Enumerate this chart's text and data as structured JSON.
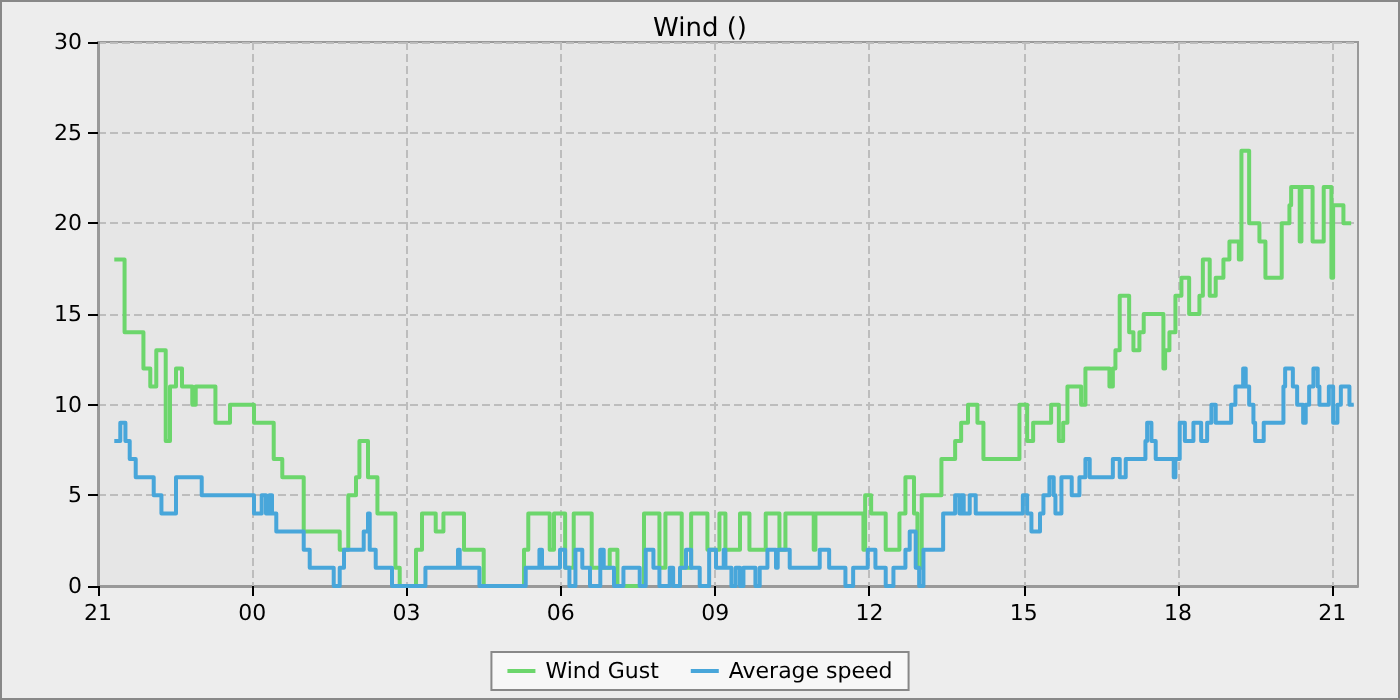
{
  "chart_data": {
    "type": "step",
    "title": "Wind ()",
    "xlim": [
      "--01-01T21:00",
      "--01-02T21:30"
    ],
    "ylim": [
      0,
      30
    ],
    "yticks": [
      0,
      5,
      10,
      15,
      20,
      25,
      30
    ],
    "xticks": [
      {
        "value": "--01-01T21:00",
        "label": "21"
      },
      {
        "value": "--01-02T00:00",
        "label": "00"
      },
      {
        "value": "--01-02T03:00",
        "label": "03"
      },
      {
        "value": "--01-02T06:00",
        "label": "06"
      },
      {
        "value": "--01-02T09:00",
        "label": "09"
      },
      {
        "value": "--01-02T12:00",
        "label": "12"
      },
      {
        "value": "--01-02T15:00",
        "label": "15"
      },
      {
        "value": "--01-02T18:00",
        "label": "18"
      },
      {
        "value": "--01-02T21:00",
        "label": "21"
      }
    ],
    "grid": true,
    "legend": "bottom",
    "series": [
      {
        "name": "Wind Gust",
        "color": "#6cd66c",
        "x": [
          "--01-01T21:19",
          "--01-01T21:31",
          "--01-01T21:53",
          "--01-01T22:01",
          "--01-01T22:08",
          "--01-01T22:19",
          "--01-01T22:24",
          "--01-01T22:31",
          "--01-01T22:38",
          "--01-01T22:50",
          "--01-01T22:54",
          "--01-01T23:17",
          "--01-01T23:34",
          "--01-02T00:02",
          "--01-02T00:25",
          "--01-02T00:35",
          "--01-02T01:00",
          "--01-02T01:42",
          "--01-02T01:52",
          "--01-02T02:01",
          "--01-02T02:05",
          "--01-02T02:15",
          "--01-02T02:26",
          "--01-02T02:47",
          "--01-02T02:52",
          "--01-02T03:11",
          "--01-02T03:18",
          "--01-02T03:34",
          "--01-02T03:43",
          "--01-02T04:07",
          "--01-02T04:30",
          "--01-02T05:17",
          "--01-02T05:22",
          "--01-02T05:47",
          "--01-02T05:52",
          "--01-02T06:05",
          "--01-02T06:15",
          "--01-02T06:36",
          "--01-02T06:57",
          "--01-02T07:06",
          "--01-02T07:37",
          "--01-02T07:55",
          "--01-02T08:02",
          "--01-02T08:21",
          "--01-02T08:32",
          "--01-02T08:51",
          "--01-02T09:05",
          "--01-02T09:12",
          "--01-02T09:29",
          "--01-02T09:40",
          "--01-02T09:59",
          "--01-02T10:15",
          "--01-02T10:22",
          "--01-02T10:55",
          "--01-02T10:57",
          "--01-02T11:53",
          "--01-02T11:55",
          "--01-02T12:02",
          "--01-02T12:19",
          "--01-02T12:35",
          "--01-02T12:42",
          "--01-02T12:52",
          "--01-02T12:56",
          "--01-02T13:01",
          "--01-02T13:24",
          "--01-02T13:40",
          "--01-02T13:47",
          "--01-02T13:55",
          "--01-02T14:06",
          "--01-02T14:13",
          "--01-02T14:55",
          "--01-02T15:04",
          "--01-02T15:11",
          "--01-02T15:32",
          "--01-02T15:41",
          "--01-02T15:46",
          "--01-02T15:51",
          "--01-02T16:07",
          "--01-02T16:12",
          "--01-02T16:40",
          "--01-02T16:44",
          "--01-02T16:47",
          "--01-02T16:52",
          "--01-02T17:03",
          "--01-02T17:08",
          "--01-02T17:15",
          "--01-02T17:20",
          "--01-02T17:43",
          "--01-02T17:45",
          "--01-02T17:50",
          "--01-02T17:57",
          "--01-02T18:04",
          "--01-02T18:13",
          "--01-02T18:25",
          "--01-02T18:29",
          "--01-02T18:37",
          "--01-02T18:44",
          "--01-02T18:53",
          "--01-02T19:00",
          "--01-02T19:11",
          "--01-02T19:14",
          "--01-02T19:23",
          "--01-02T19:35",
          "--01-02T19:42",
          "--01-02T20:01",
          "--01-02T20:10",
          "--01-02T20:12",
          "--01-02T20:22",
          "--01-02T20:24",
          "--01-02T20:37",
          "--01-02T20:50",
          "--01-02T20:59",
          "--01-02T21:01",
          "--01-02T21:13",
          "--01-02T21:22"
        ],
        "values": [
          18,
          14,
          12,
          11,
          13,
          8,
          11,
          12,
          11,
          10,
          11,
          9,
          10,
          9,
          7,
          6,
          3,
          2,
          5,
          6,
          8,
          6,
          4,
          1,
          0,
          2,
          4,
          3,
          4,
          2,
          0,
          2,
          4,
          2,
          4,
          1,
          4,
          1,
          2,
          0,
          4,
          1,
          4,
          1,
          4,
          2,
          4,
          2,
          4,
          2,
          4,
          2,
          4,
          2,
          4,
          2,
          5,
          4,
          2,
          4,
          6,
          4,
          1,
          5,
          7,
          8,
          9,
          10,
          9,
          7,
          10,
          8,
          9,
          10,
          8,
          9,
          11,
          10,
          12,
          11,
          12,
          13,
          16,
          14,
          13,
          14,
          15,
          12,
          13,
          14,
          16,
          17,
          15,
          16,
          18,
          16,
          17,
          18,
          19,
          18,
          24,
          20,
          19,
          17,
          20,
          21,
          22,
          19,
          22,
          19,
          22,
          17,
          21,
          20,
          20
        ]
      },
      {
        "name": "Average speed",
        "color": "#48a6da",
        "x": [
          "--01-01T21:19",
          "--01-01T21:26",
          "--01-01T21:32",
          "--01-01T21:37",
          "--01-01T21:44",
          "--01-01T22:05",
          "--01-01T22:14",
          "--01-01T22:31",
          "--01-01T23:01",
          "--01-02T00:02",
          "--01-02T00:11",
          "--01-02T00:16",
          "--01-02T00:20",
          "--01-02T00:23",
          "--01-02T00:28",
          "--01-02T01:00",
          "--01-02T01:07",
          "--01-02T01:35",
          "--01-02T01:42",
          "--01-02T01:47",
          "--01-02T02:10",
          "--01-02T02:15",
          "--01-02T02:17",
          "--01-02T02:24",
          "--01-02T02:43",
          "--01-02T03:22",
          "--01-02T04:00",
          "--01-02T04:02",
          "--01-02T04:25",
          "--01-02T05:19",
          "--01-02T05:35",
          "--01-02T05:38",
          "--01-02T05:59",
          "--01-02T06:05",
          "--01-02T06:10",
          "--01-02T06:17",
          "--01-02T06:25",
          "--01-02T06:34",
          "--01-02T06:46",
          "--01-02T06:50",
          "--01-02T07:02",
          "--01-02T07:13",
          "--01-02T07:32",
          "--01-02T07:39",
          "--01-02T07:48",
          "--01-02T07:55",
          "--01-02T08:07",
          "--01-02T08:11",
          "--01-02T08:19",
          "--01-02T08:26",
          "--01-02T08:32",
          "--01-02T08:42",
          "--01-02T08:53",
          "--01-02T09:01",
          "--01-02T09:10",
          "--01-02T09:12",
          "--01-02T09:19",
          "--01-02T09:24",
          "--01-02T09:29",
          "--01-02T09:33",
          "--01-02T09:47",
          "--01-02T09:52",
          "--01-02T10:01",
          "--01-02T10:11",
          "--01-02T10:13",
          "--01-02T10:27",
          "--01-02T11:02",
          "--01-02T11:13",
          "--01-02T11:32",
          "--01-02T11:41",
          "--01-02T11:58",
          "--01-02T12:07",
          "--01-02T12:19",
          "--01-02T12:28",
          "--01-02T12:42",
          "--01-02T12:47",
          "--01-02T12:54",
          "--01-02T12:58",
          "--01-02T13:03",
          "--01-02T13:26",
          "--01-02T13:40",
          "--01-02T13:45",
          "--01-02T13:47",
          "--01-02T13:50",
          "--01-02T13:57",
          "--01-02T14:04",
          "--01-02T14:59",
          "--01-02T15:04",
          "--01-02T15:09",
          "--01-02T15:19",
          "--01-02T15:23",
          "--01-02T15:30",
          "--01-02T15:35",
          "--01-02T15:37",
          "--01-02T15:44",
          "--01-02T15:56",
          "--01-02T16:05",
          "--01-02T16:12",
          "--01-02T16:17",
          "--01-02T16:44",
          "--01-02T16:52",
          "--01-02T16:59",
          "--01-02T17:22",
          "--01-02T17:24",
          "--01-02T17:29",
          "--01-02T17:34",
          "--01-02T17:55",
          "--01-02T17:57",
          "--01-02T18:02",
          "--01-02T18:08",
          "--01-02T18:18",
          "--01-02T18:27",
          "--01-02T18:34",
          "--01-02T18:39",
          "--01-02T18:44",
          "--01-02T19:02",
          "--01-02T19:07",
          "--01-02T19:16",
          "--01-02T19:19",
          "--01-02T19:23",
          "--01-02T19:28",
          "--01-02T19:30",
          "--01-02T19:40",
          "--01-02T20:03",
          "--01-02T20:05",
          "--01-02T20:14",
          "--01-02T20:19",
          "--01-02T20:26",
          "--01-02T20:29",
          "--01-02T20:33",
          "--01-02T20:38",
          "--01-02T20:43",
          "--01-02T20:45",
          "--01-02T20:56",
          "--01-02T21:01",
          "--01-02T21:06",
          "--01-02T21:10",
          "--01-02T21:20",
          "--01-02T21:25"
        ],
        "values": [
          8,
          9,
          8,
          7,
          6,
          5,
          4,
          6,
          5,
          4,
          5,
          4,
          5,
          4,
          3,
          2,
          1,
          0,
          1,
          2,
          3,
          4,
          2,
          1,
          0,
          1,
          2,
          1,
          0,
          1,
          2,
          1,
          2,
          1,
          0,
          2,
          1,
          0,
          2,
          1,
          0,
          1,
          0,
          2,
          1,
          0,
          1,
          0,
          1,
          2,
          1,
          0,
          2,
          1,
          2,
          1,
          0,
          1,
          0,
          1,
          0,
          1,
          2,
          1,
          2,
          1,
          2,
          1,
          0,
          1,
          2,
          1,
          0,
          1,
          2,
          3,
          1,
          0,
          2,
          4,
          5,
          4,
          5,
          4,
          5,
          4,
          5,
          4,
          3,
          4,
          5,
          6,
          5,
          4,
          6,
          5,
          6,
          7,
          6,
          7,
          6,
          7,
          8,
          9,
          8,
          7,
          6,
          7,
          9,
          8,
          9,
          8,
          9,
          10,
          9,
          10,
          11,
          12,
          11,
          10,
          9,
          8,
          9,
          11,
          12,
          11,
          10,
          9,
          10,
          11,
          12,
          11,
          10,
          11,
          9,
          10,
          11,
          10,
          10
        ]
      }
    ]
  }
}
